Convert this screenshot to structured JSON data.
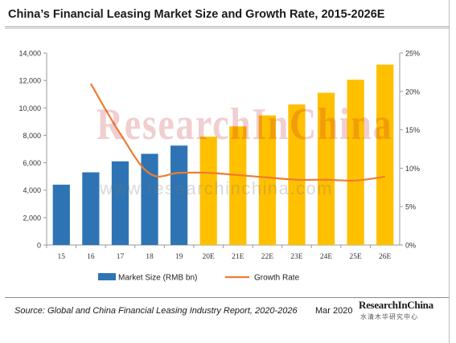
{
  "title": "China’s Financial Leasing Market Size and Growth Rate, 2015-2026E",
  "source": "Source: Global and China Financial Leasing Industry Report, 2020-2026",
  "date": "Mar 2020",
  "logo": {
    "text_main": "ResearchInChina",
    "text_sub": "水清木华研究中心"
  },
  "watermark": {
    "text": "ResearchInChina",
    "url": "www.researchinchina.com"
  },
  "colors": {
    "actual_bar": "#2e74b5",
    "forecast_bar": "#ffc000",
    "growth_line": "#ed7d31",
    "axis": "#9a9a9a"
  },
  "chart_data": {
    "type": "bar",
    "title": "China’s Financial Leasing Market Size and Growth Rate, 2015-2026E",
    "categories": [
      "15",
      "16",
      "17",
      "18",
      "19",
      "20E",
      "21E",
      "22E",
      "23E",
      "24E",
      "25E",
      "26E"
    ],
    "y_ticks": [
      "0",
      "2,000",
      "4,000",
      "6,000",
      "8,000",
      "10,000",
      "12,000",
      "14,000"
    ],
    "y2_ticks": [
      "0%",
      "5%",
      "10%",
      "15%",
      "20%",
      "25%"
    ],
    "ylim": [
      0,
      14000
    ],
    "y2lim": [
      0,
      25
    ],
    "grid": false,
    "legend_position": "bottom",
    "series": [
      {
        "name": "Market Size (RMB bn)",
        "type": "bar",
        "axis": "left",
        "values": [
          4400,
          5300,
          6100,
          6650,
          7250,
          7900,
          8650,
          9450,
          10250,
          11100,
          12050,
          13150
        ],
        "forecast_from_index": 5
      },
      {
        "name": "Growth Rate",
        "type": "line",
        "axis": "right",
        "unit": "%",
        "values": [
          null,
          21.0,
          14.5,
          9.3,
          9.4,
          9.4,
          9.1,
          8.8,
          8.5,
          8.5,
          8.4,
          8.9
        ]
      }
    ]
  }
}
